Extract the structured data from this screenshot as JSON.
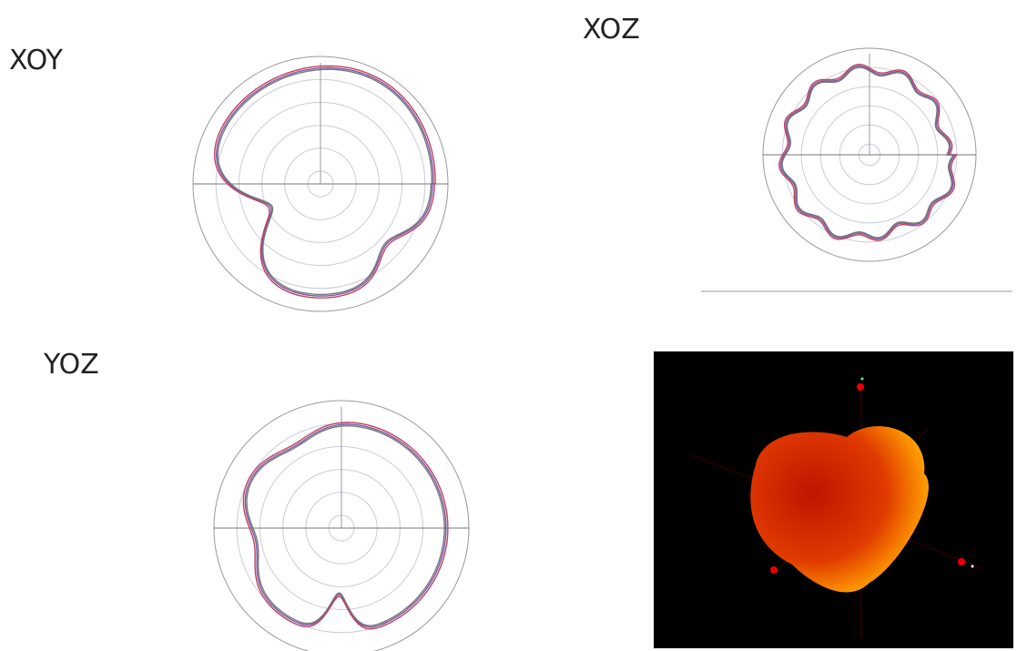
{
  "panels": [
    {
      "label": "XOY"
    },
    {
      "label": "XOZ"
    },
    {
      "label": "YOZ"
    }
  ]
}
